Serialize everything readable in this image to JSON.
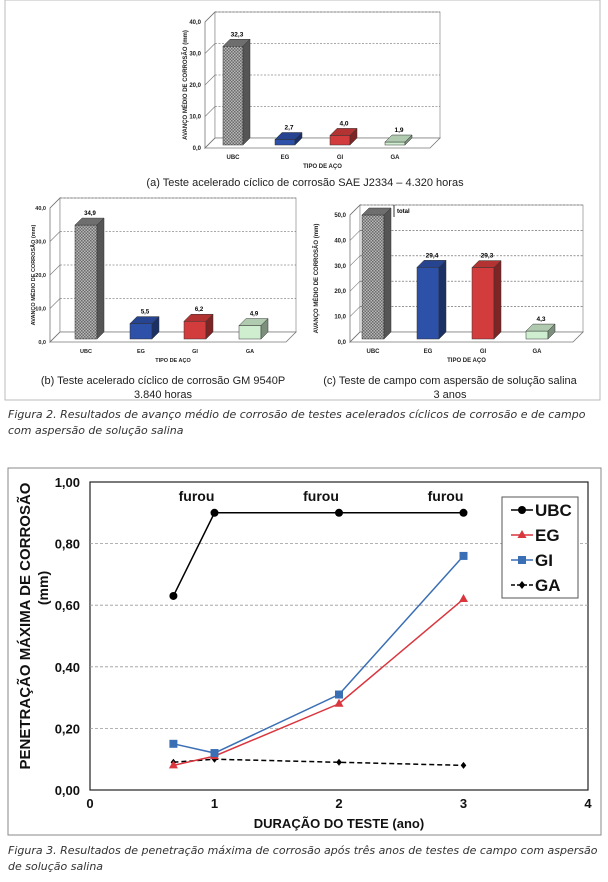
{
  "figure2": {
    "caption": "Figura 2. Resultados de avanço médio de corrosão de testes acelerados cíclicos de corrosão e de campo com aspersão de solução salina",
    "colors": {
      "UBC": "#9a9a9a",
      "EG": "#2d50a8",
      "GI": "#d23c3c",
      "GA": "#cfeecf"
    }
  },
  "chart_data": [
    {
      "type": "bar",
      "id": "a",
      "caption": "(a) Teste acelerado cíclico de corrosão SAE J2334 – 4.320 horas",
      "caption2": "",
      "categories": [
        "UBC",
        "EG",
        "GI",
        "GA"
      ],
      "values": [
        32.3,
        2.7,
        4.0,
        1.9
      ],
      "data_labels": [
        "32,3",
        "2,7",
        "4,0",
        "1,9"
      ],
      "xlabel": "TIPO DE AÇO",
      "ylabel": "AVANÇO MÉDIO DE CORROSÃO (mm)",
      "ylim": [
        0,
        40
      ],
      "yticks": [
        "0,0",
        "10,0",
        "20,0",
        "30,0",
        "40,0"
      ],
      "grid": true
    },
    {
      "type": "bar",
      "id": "b",
      "caption": "(b) Teste acelerado cíclico de corrosão GM 9540P",
      "caption2": "3.840 horas",
      "categories": [
        "UBC",
        "EG",
        "GI",
        "GA"
      ],
      "values": [
        34.9,
        5.5,
        6.2,
        4.9
      ],
      "data_labels": [
        "34,9",
        "5,5",
        "6,2",
        "4,9"
      ],
      "xlabel": "TIPO DE AÇO",
      "ylabel": "AVANÇO MÉDIO DE CORROSÃO (mm)",
      "ylim": [
        0,
        40
      ],
      "yticks": [
        "0,0",
        "10,0",
        "20,0",
        "30,0",
        "40,0"
      ],
      "grid": true
    },
    {
      "type": "bar",
      "id": "c",
      "caption": "(c) Teste de campo com aspersão de solução salina",
      "caption2": "3 anos",
      "categories": [
        "UBC",
        "EG",
        "GI",
        "GA"
      ],
      "values": [
        50.0,
        29.4,
        29.3,
        4.3
      ],
      "data_labels": [
        "total",
        "29,4",
        "29,3",
        "4,3"
      ],
      "xlabel": "TIPO DE AÇO",
      "ylabel": "AVANÇO MÉDIO DE CORROSÃO (mm)",
      "ylim": [
        0,
        50
      ],
      "yticks": [
        "0,0",
        "10,0",
        "20,0",
        "30,0",
        "40,0",
        "50,0"
      ],
      "grid": true
    },
    {
      "type": "line",
      "id": "fig3",
      "xlabel": "DURAÇÃO DO TESTE (ano)",
      "ylabel": "PENETRAÇÃO MÁXIMA DE CORROSÃO",
      "ylabel2": "(mm)",
      "xlim": [
        0,
        4
      ],
      "ylim": [
        0,
        1.0
      ],
      "xticks": [
        "0",
        "1",
        "2",
        "3",
        "4"
      ],
      "yticks": [
        "0,00",
        "0,20",
        "0,40",
        "0,60",
        "0,80",
        "1,00"
      ],
      "grid": true,
      "legend": "top-right",
      "annotations": [
        {
          "text": "furou",
          "x": 1,
          "y": 0.9
        },
        {
          "text": "furou",
          "x": 2,
          "y": 0.9
        },
        {
          "text": "furou",
          "x": 3,
          "y": 0.9
        }
      ],
      "series": [
        {
          "name": "UBC",
          "color": "#000000",
          "marker": "circle",
          "dash": false,
          "x": [
            0.67,
            1,
            2,
            3
          ],
          "y": [
            0.63,
            0.9,
            0.9,
            0.9
          ]
        },
        {
          "name": "EG",
          "color": "#d9363e",
          "marker": "triangle",
          "dash": false,
          "x": [
            0.67,
            1,
            2,
            3
          ],
          "y": [
            0.08,
            0.11,
            0.28,
            0.62
          ]
        },
        {
          "name": "GI",
          "color": "#3a6fb5",
          "marker": "square",
          "dash": false,
          "x": [
            0.67,
            1,
            2,
            3
          ],
          "y": [
            0.15,
            0.12,
            0.31,
            0.76
          ]
        },
        {
          "name": "GA",
          "color": "#000000",
          "marker": "diamond",
          "dash": true,
          "x": [
            0.67,
            1,
            2,
            3
          ],
          "y": [
            0.09,
            0.1,
            0.09,
            0.08
          ]
        }
      ]
    }
  ],
  "figure3": {
    "caption": "Figura 3. Resultados de penetração máxima de corrosão após três anos de testes de campo com aspersão de solução salina"
  }
}
